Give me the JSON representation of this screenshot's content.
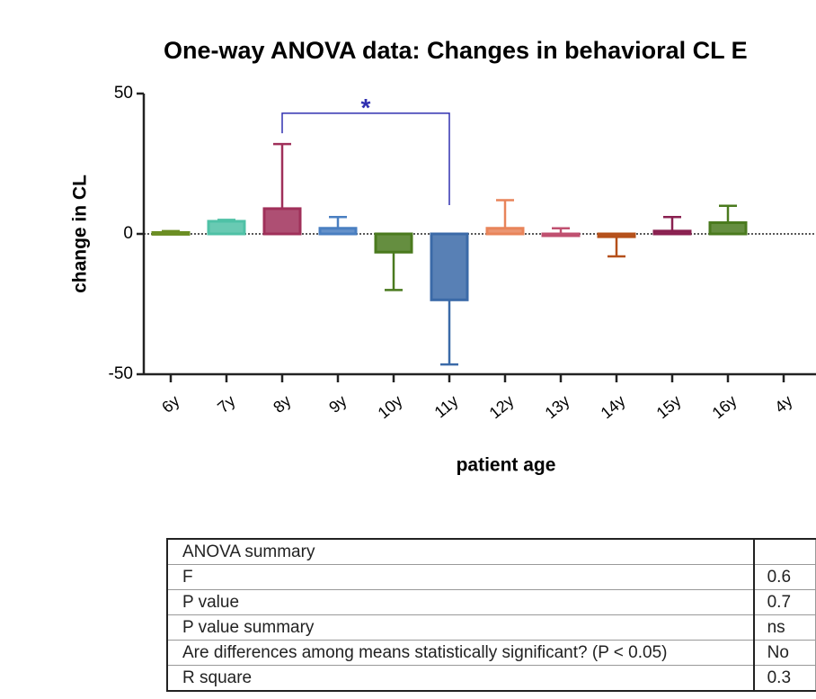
{
  "chart_data": {
    "type": "bar",
    "title": "One-way ANOVA data: Changes in behavioral CL E",
    "y_label": "change in CL",
    "x_label": "patient age",
    "categories": [
      "6y",
      "7y",
      "8y",
      "9y",
      "10y",
      "11y",
      "12y",
      "13y",
      "14y",
      "15y",
      "16y",
      "4y"
    ],
    "values": [
      0.5,
      4.5,
      9,
      2,
      -6.5,
      -23.5,
      2,
      0,
      -1,
      1,
      4,
      null
    ],
    "errors": [
      0.5,
      0.5,
      23,
      4,
      13.5,
      23,
      10,
      2,
      7,
      5,
      6,
      null
    ],
    "colors": [
      "#6b8e23",
      "#4fc1a6",
      "#a0305a",
      "#4a7fc1",
      "#4a7a1e",
      "#3b6aa8",
      "#e8845a",
      "#c05070",
      "#b5501a",
      "#8a2050",
      "#4a7a1e",
      "#888888"
    ],
    "ylim": [
      -50,
      50
    ],
    "yticks": [
      -50,
      0,
      50
    ],
    "annotations": [
      {
        "text": "*",
        "from": 2,
        "to": 5,
        "y": 43,
        "color": "#3030b0"
      }
    ]
  },
  "table": {
    "rows": [
      [
        "ANOVA summary",
        ""
      ],
      [
        "F",
        "0.6"
      ],
      [
        "P value",
        "0.7"
      ],
      [
        "P value summary",
        "ns"
      ],
      [
        "Are differences among means statistically significant? (P < 0.05)",
        "No"
      ],
      [
        "R square",
        "0.3"
      ]
    ]
  }
}
